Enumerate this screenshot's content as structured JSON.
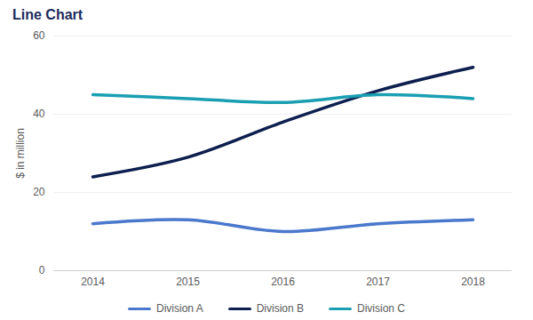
{
  "chart_data": {
    "type": "line",
    "title": "Line Chart",
    "y_label": "$ in million",
    "categories": [
      "2014",
      "2015",
      "2016",
      "2017",
      "2018"
    ],
    "series": [
      {
        "name": "Division A",
        "color": "#4a78cc",
        "values": [
          12,
          13,
          10,
          12,
          13
        ]
      },
      {
        "name": "Division B",
        "color": "#0d1f4f",
        "values": [
          24,
          29,
          38,
          46,
          52
        ]
      },
      {
        "name": "Division C",
        "color": "#1a9fb2",
        "values": [
          45,
          44,
          43,
          45,
          44
        ]
      }
    ],
    "ylim": [
      0,
      60
    ],
    "yticks": [
      0,
      20,
      40,
      60
    ],
    "grid": true,
    "legend": "bottom"
  }
}
